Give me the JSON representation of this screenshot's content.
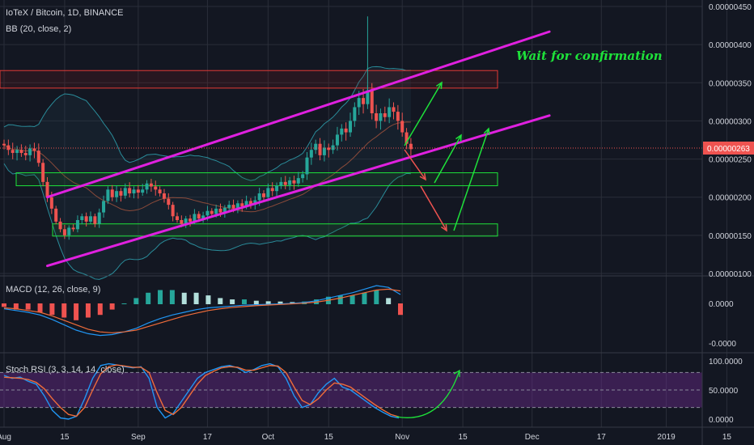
{
  "header": {
    "title": "IoTeX / Bitcoin, 1D, BINANCE",
    "indicator": "BB (20, close, 2)"
  },
  "annotation": "Wait for confirmation",
  "panels": {
    "macd": "MACD (12, 26, close, 9)",
    "stoch": "Stoch RSI (3, 3, 14, 14, close)"
  },
  "colors": {
    "background": "#131722",
    "up_candle": "#26a69a",
    "down_candle": "#ef5350",
    "channel": "#e020e0",
    "support_zone": "#1ee23a",
    "resistance_zone": "#e53935",
    "price_tag": "#ef5350",
    "bb": "#2a8c9a",
    "macd_line": "#2196f3",
    "signal_line": "#ef6c3a",
    "stoch_band": "#6a2a8c"
  },
  "chart_data": [
    {
      "type": "candlestick",
      "panel": "price",
      "title": "IoTeX / Bitcoin, 1D, BINANCE",
      "y_ticks": [
        "0.00000450",
        "0.00000400",
        "0.00000350",
        "0.00000300",
        "0.00000250",
        "0.00000200",
        "0.00000150",
        "0.00000100"
      ],
      "ylim": [
        9.3e-07,
        4.52e-06
      ],
      "last_price_label": "0.00000263",
      "last_price": 2.63e-06,
      "close_values": [
        2.68e-06,
        2.62e-06,
        2.58e-06,
        2.62e-06,
        2.58e-06,
        2.55e-06,
        2.64e-06,
        2.61e-06,
        2.45e-06,
        2.2e-06,
        2e-06,
        1.85e-06,
        1.68e-06,
        1.58e-06,
        1.5e-06,
        1.6e-06,
        1.58e-06,
        1.7e-06,
        1.75e-06,
        1.68e-06,
        1.75e-06,
        1.65e-06,
        1.8e-06,
        1.95e-06,
        2.1e-06,
        2e-06,
        2.08e-06,
        2.02e-06,
        2.12e-06,
        2.05e-06,
        2.1e-06,
        2.06e-06,
        2.1e-06,
        2.18e-06,
        2.14e-06,
        2.1e-06,
        2.05e-06,
        1.98e-06,
        1.9e-06,
        1.75e-06,
        1.7e-06,
        1.65e-06,
        1.72e-06,
        1.68e-06,
        1.78e-06,
        1.72e-06,
        1.76e-06,
        1.82e-06,
        1.78e-06,
        1.85e-06,
        1.8e-06,
        1.86e-06,
        1.9e-06,
        1.85e-06,
        1.92e-06,
        1.88e-06,
        1.95e-06,
        1.9e-06,
        1.96e-06,
        2.05e-06,
        2e-06,
        2.12e-06,
        2.08e-06,
        2.15e-06,
        2.2e-06,
        2.16e-06,
        2.22e-06,
        2.18e-06,
        2.25e-06,
        2.3e-06,
        2.52e-06,
        2.62e-06,
        2.7e-06,
        2.55e-06,
        2.65e-06,
        2.62e-06,
        2.68e-06,
        2.82e-06,
        2.9e-06,
        2.85e-06,
        3e-06,
        3.18e-06,
        3.3e-06,
        3.22e-06,
        3.4e-06,
        3.1e-06,
        3e-06,
        3.1e-06,
        3.05e-06,
        3.18e-06,
        3.12e-06,
        3e-06,
        2.85e-06,
        2.7e-06,
        2.63e-06
      ],
      "shapes": {
        "channel_upper": [
          [
            "2018-08-11",
            2e-06
          ],
          [
            "2018-12-05",
            4.17e-06
          ]
        ],
        "channel_lower": [
          [
            "2018-08-11",
            1.1e-06
          ],
          [
            "2018-12-05",
            3.07e-06
          ]
        ],
        "resistance_zone": [
          3.43e-06,
          3.66e-06
        ],
        "support_zone_upper": [
          2.15e-06,
          2.32e-06
        ],
        "support_zone_lower": [
          1.49e-06,
          1.65e-06
        ]
      }
    },
    {
      "type": "line",
      "panel": "macd",
      "title": "MACD (12, 26, close, 9)",
      "y_ticks": [
        "0.0000",
        "-0.0000"
      ],
      "series": [
        {
          "name": "MACD",
          "values": [
            -0.06,
            -0.08,
            -0.1,
            -0.13,
            -0.18,
            -0.24,
            -0.3,
            -0.34,
            -0.36,
            -0.35,
            -0.32,
            -0.28,
            -0.22,
            -0.17,
            -0.13,
            -0.1,
            -0.07,
            -0.05,
            -0.04,
            -0.03,
            -0.02,
            -0.015,
            -0.01,
            -0.005,
            0.0,
            0.01,
            0.03,
            0.06,
            0.09,
            0.12,
            0.16,
            0.2,
            0.18,
            0.1
          ]
        },
        {
          "name": "Signal",
          "values": [
            -0.05,
            -0.06,
            -0.08,
            -0.1,
            -0.14,
            -0.19,
            -0.24,
            -0.29,
            -0.32,
            -0.33,
            -0.32,
            -0.3,
            -0.26,
            -0.22,
            -0.18,
            -0.14,
            -0.11,
            -0.08,
            -0.06,
            -0.045,
            -0.035,
            -0.025,
            -0.018,
            -0.012,
            -0.005,
            0.003,
            0.015,
            0.035,
            0.06,
            0.09,
            0.12,
            0.15,
            0.16,
            0.14
          ]
        }
      ]
    },
    {
      "type": "line",
      "panel": "stoch_rsi",
      "title": "Stoch RSI (3, 3, 14, 14, close)",
      "y_ticks": [
        "100.0000",
        "50.0000",
        "0.0000"
      ],
      "ylim": [
        0,
        100
      ],
      "band": [
        20,
        80
      ],
      "series": [
        {
          "name": "K",
          "values": [
            75,
            70,
            72,
            65,
            60,
            40,
            15,
            2,
            0,
            5,
            35,
            70,
            92,
            95,
            93,
            90,
            88,
            90,
            70,
            20,
            2,
            10,
            30,
            50,
            70,
            80,
            85,
            90,
            92,
            88,
            80,
            85,
            92,
            95,
            90,
            70,
            40,
            20,
            25,
            45,
            60,
            70,
            55,
            50,
            40,
            30,
            20,
            12,
            5,
            2
          ]
        },
        {
          "name": "D",
          "values": [
            72,
            71,
            70,
            68,
            63,
            52,
            35,
            20,
            8,
            5,
            20,
            50,
            78,
            90,
            93,
            91,
            89,
            89,
            80,
            45,
            15,
            8,
            20,
            40,
            60,
            75,
            82,
            88,
            90,
            89,
            84,
            84,
            88,
            92,
            91,
            80,
            55,
            32,
            25,
            35,
            50,
            62,
            60,
            55,
            45,
            35,
            25,
            16,
            8,
            4
          ]
        }
      ]
    }
  ],
  "x_axis": {
    "labels": [
      "Aug",
      "15",
      "Sep",
      "17",
      "Oct",
      "15",
      "Nov",
      "15",
      "Dec",
      "17",
      "2019",
      "15"
    ]
  }
}
